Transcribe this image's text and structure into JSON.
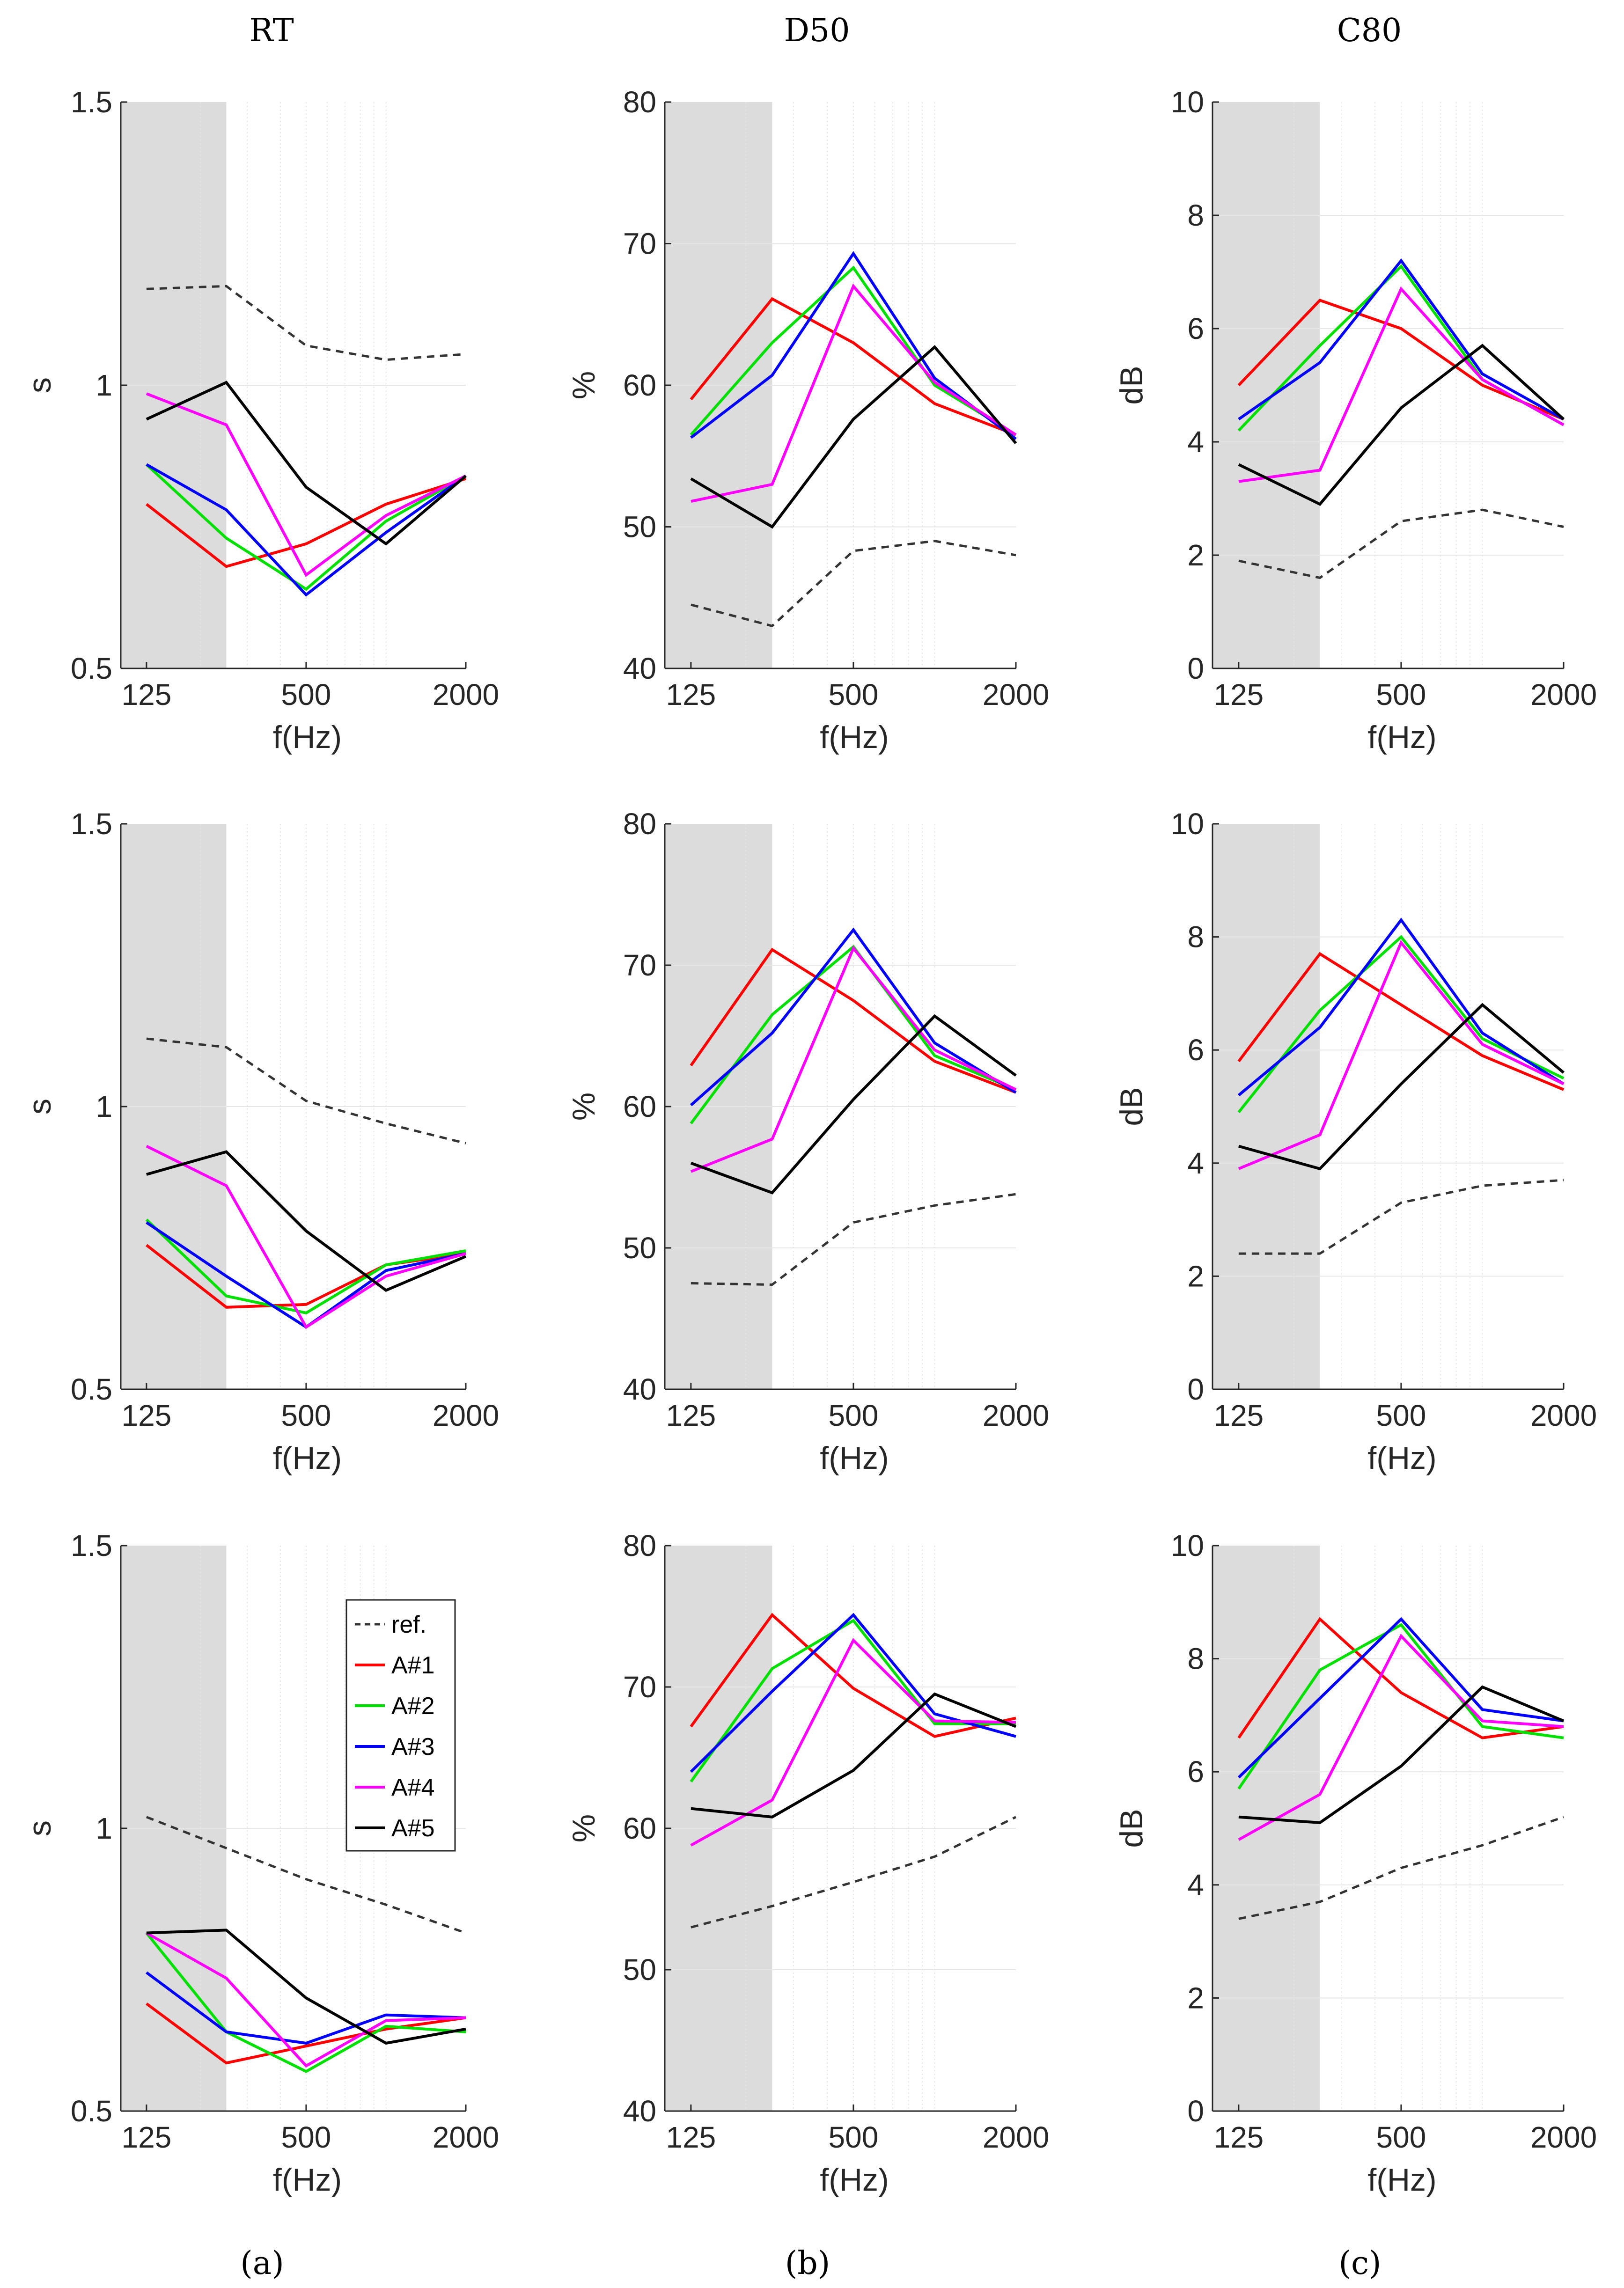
{
  "column_titles": [
    "RT",
    "D50",
    "C80"
  ],
  "panel_labels": [
    "(a)",
    "(b)",
    "(c)"
  ],
  "legend": [
    "ref.",
    "A#1",
    "A#2",
    "A#3",
    "A#4",
    "A#5"
  ],
  "colors": {
    "ref.": "#333333",
    "A#1": "#ff0000",
    "A#2": "#00e000",
    "A#3": "#0000ff",
    "A#4": "#ff00ff",
    "A#5": "#000000",
    "shade": "#dcdcdc",
    "grid": "#e6e6e6"
  },
  "chart_data": [
    {
      "type": "line",
      "row": 1,
      "col": 1,
      "xlabel": "f(Hz)",
      "ylabel": "s",
      "xscale": "log",
      "x": [
        125,
        250,
        500,
        1000,
        2000
      ],
      "xticks": [
        "125",
        "500",
        "2000"
      ],
      "ylim": [
        0.5,
        1.5
      ],
      "yticks": [
        "0.5",
        "1",
        "1.5"
      ],
      "shade_xmax": 250,
      "series": [
        {
          "name": "ref.",
          "values": [
            1.17,
            1.175,
            1.07,
            1.045,
            1.055
          ]
        },
        {
          "name": "A#1",
          "values": [
            0.79,
            0.68,
            0.72,
            0.79,
            0.835
          ]
        },
        {
          "name": "A#2",
          "values": [
            0.86,
            0.73,
            0.64,
            0.76,
            0.84
          ]
        },
        {
          "name": "A#3",
          "values": [
            0.86,
            0.78,
            0.63,
            0.74,
            0.84
          ]
        },
        {
          "name": "A#4",
          "values": [
            0.985,
            0.93,
            0.665,
            0.77,
            0.84
          ]
        },
        {
          "name": "A#5",
          "values": [
            0.94,
            1.005,
            0.82,
            0.72,
            0.84
          ]
        }
      ]
    },
    {
      "type": "line",
      "row": 1,
      "col": 2,
      "xlabel": "f(Hz)",
      "ylabel": "%",
      "xscale": "log",
      "x": [
        125,
        250,
        500,
        1000,
        2000
      ],
      "xticks": [
        "125",
        "500",
        "2000"
      ],
      "ylim": [
        40,
        80
      ],
      "yticks": [
        "40",
        "50",
        "60",
        "70",
        "80"
      ],
      "shade_xmax": 250,
      "series": [
        {
          "name": "ref.",
          "values": [
            44.5,
            43.0,
            48.3,
            49.0,
            48.0
          ]
        },
        {
          "name": "A#1",
          "values": [
            59.0,
            66.1,
            63.0,
            58.7,
            56.5
          ]
        },
        {
          "name": "A#2",
          "values": [
            56.5,
            63.0,
            68.3,
            60.0,
            56.5
          ]
        },
        {
          "name": "A#3",
          "values": [
            56.3,
            60.7,
            69.3,
            60.5,
            56.2
          ]
        },
        {
          "name": "A#4",
          "values": [
            51.8,
            53.0,
            67.0,
            60.2,
            56.5
          ]
        },
        {
          "name": "A#5",
          "values": [
            53.4,
            50.0,
            57.6,
            62.7,
            55.9
          ]
        }
      ]
    },
    {
      "type": "line",
      "row": 1,
      "col": 3,
      "xlabel": "f(Hz)",
      "ylabel": "dB",
      "xscale": "log",
      "x": [
        125,
        250,
        500,
        1000,
        2000
      ],
      "xticks": [
        "125",
        "500",
        "2000"
      ],
      "ylim": [
        0,
        10
      ],
      "yticks": [
        "0",
        "2",
        "4",
        "6",
        "8",
        "10"
      ],
      "shade_xmax": 250,
      "series": [
        {
          "name": "ref.",
          "values": [
            1.9,
            1.6,
            2.6,
            2.8,
            2.5
          ]
        },
        {
          "name": "A#1",
          "values": [
            5.0,
            6.5,
            6.0,
            5.0,
            4.4
          ]
        },
        {
          "name": "A#2",
          "values": [
            4.2,
            5.7,
            7.1,
            5.1,
            4.3
          ]
        },
        {
          "name": "A#3",
          "values": [
            4.4,
            5.4,
            7.2,
            5.2,
            4.4
          ]
        },
        {
          "name": "A#4",
          "values": [
            3.3,
            3.5,
            6.7,
            5.1,
            4.3
          ]
        },
        {
          "name": "A#5",
          "values": [
            3.6,
            2.9,
            4.6,
            5.7,
            4.4
          ]
        }
      ]
    },
    {
      "type": "line",
      "row": 2,
      "col": 1,
      "xlabel": "f(Hz)",
      "ylabel": "s",
      "xscale": "log",
      "x": [
        125,
        250,
        500,
        1000,
        2000
      ],
      "xticks": [
        "125",
        "500",
        "2000"
      ],
      "ylim": [
        0.5,
        1.5
      ],
      "yticks": [
        "0.5",
        "1",
        "1.5"
      ],
      "shade_xmax": 250,
      "series": [
        {
          "name": "ref.",
          "values": [
            1.12,
            1.105,
            1.01,
            0.97,
            0.935
          ]
        },
        {
          "name": "A#1",
          "values": [
            0.755,
            0.645,
            0.65,
            0.72,
            0.74
          ]
        },
        {
          "name": "A#2",
          "values": [
            0.8,
            0.665,
            0.635,
            0.72,
            0.745
          ]
        },
        {
          "name": "A#3",
          "values": [
            0.795,
            0.7,
            0.61,
            0.71,
            0.74
          ]
        },
        {
          "name": "A#4",
          "values": [
            0.93,
            0.86,
            0.61,
            0.7,
            0.74
          ]
        },
        {
          "name": "A#5",
          "values": [
            0.88,
            0.92,
            0.78,
            0.675,
            0.735
          ]
        }
      ]
    },
    {
      "type": "line",
      "row": 2,
      "col": 2,
      "xlabel": "f(Hz)",
      "ylabel": "%",
      "xscale": "log",
      "x": [
        125,
        250,
        500,
        1000,
        2000
      ],
      "xticks": [
        "125",
        "500",
        "2000"
      ],
      "ylim": [
        40,
        80
      ],
      "yticks": [
        "40",
        "50",
        "60",
        "70",
        "80"
      ],
      "shade_xmax": 250,
      "series": [
        {
          "name": "ref.",
          "values": [
            47.5,
            47.4,
            51.8,
            53.0,
            53.8
          ]
        },
        {
          "name": "A#1",
          "values": [
            62.9,
            71.1,
            67.5,
            63.2,
            61.0
          ]
        },
        {
          "name": "A#2",
          "values": [
            58.8,
            66.5,
            71.3,
            63.6,
            61.2
          ]
        },
        {
          "name": "A#3",
          "values": [
            60.1,
            65.2,
            72.5,
            64.5,
            61.0
          ]
        },
        {
          "name": "A#4",
          "values": [
            55.4,
            57.7,
            71.2,
            64.0,
            61.2
          ]
        },
        {
          "name": "A#5",
          "values": [
            56.0,
            53.9,
            60.5,
            66.4,
            62.2
          ]
        }
      ]
    },
    {
      "type": "line",
      "row": 2,
      "col": 3,
      "xlabel": "f(Hz)",
      "ylabel": "dB",
      "xscale": "log",
      "x": [
        125,
        250,
        500,
        1000,
        2000
      ],
      "xticks": [
        "125",
        "500",
        "2000"
      ],
      "ylim": [
        0,
        10
      ],
      "yticks": [
        "0",
        "2",
        "4",
        "6",
        "8",
        "10"
      ],
      "shade_xmax": 250,
      "series": [
        {
          "name": "ref.",
          "values": [
            2.4,
            2.4,
            3.3,
            3.6,
            3.7
          ]
        },
        {
          "name": "A#1",
          "values": [
            5.8,
            7.7,
            6.8,
            5.9,
            5.3
          ]
        },
        {
          "name": "A#2",
          "values": [
            4.9,
            6.7,
            8.0,
            6.2,
            5.5
          ]
        },
        {
          "name": "A#3",
          "values": [
            5.2,
            6.4,
            8.3,
            6.3,
            5.4
          ]
        },
        {
          "name": "A#4",
          "values": [
            3.9,
            4.5,
            7.9,
            6.1,
            5.4
          ]
        },
        {
          "name": "A#5",
          "values": [
            4.3,
            3.9,
            5.4,
            6.8,
            5.6
          ]
        }
      ]
    },
    {
      "type": "line",
      "row": 3,
      "col": 1,
      "xlabel": "f(Hz)",
      "ylabel": "s",
      "xscale": "log",
      "x": [
        125,
        250,
        500,
        1000,
        2000
      ],
      "xticks": [
        "125",
        "500",
        "2000"
      ],
      "ylim": [
        0.5,
        1.5
      ],
      "yticks": [
        "0.5",
        "1",
        "1.5"
      ],
      "shade_xmax": 250,
      "series": [
        {
          "name": "ref.",
          "values": [
            1.02,
            0.965,
            0.91,
            0.865,
            0.815
          ]
        },
        {
          "name": "A#1",
          "values": [
            0.69,
            0.585,
            0.615,
            0.645,
            0.665
          ]
        },
        {
          "name": "A#2",
          "values": [
            0.815,
            0.64,
            0.57,
            0.65,
            0.64
          ]
        },
        {
          "name": "A#3",
          "values": [
            0.745,
            0.64,
            0.62,
            0.67,
            0.665
          ]
        },
        {
          "name": "A#4",
          "values": [
            0.815,
            0.735,
            0.58,
            0.66,
            0.665
          ]
        },
        {
          "name": "A#5",
          "values": [
            0.815,
            0.82,
            0.7,
            0.62,
            0.645
          ]
        }
      ]
    },
    {
      "type": "line",
      "row": 3,
      "col": 2,
      "xlabel": "f(Hz)",
      "ylabel": "%",
      "xscale": "log",
      "x": [
        125,
        250,
        500,
        1000,
        2000
      ],
      "xticks": [
        "125",
        "500",
        "2000"
      ],
      "ylim": [
        40,
        80
      ],
      "yticks": [
        "40",
        "50",
        "60",
        "70",
        "80"
      ],
      "shade_xmax": 250,
      "series": [
        {
          "name": "ref.",
          "values": [
            53.0,
            54.5,
            56.2,
            58.0,
            60.8
          ]
        },
        {
          "name": "A#1",
          "values": [
            67.2,
            75.1,
            69.9,
            66.5,
            67.8
          ]
        },
        {
          "name": "A#2",
          "values": [
            63.3,
            71.3,
            74.7,
            67.4,
            67.4
          ]
        },
        {
          "name": "A#3",
          "values": [
            64.0,
            69.7,
            75.1,
            68.1,
            66.5
          ]
        },
        {
          "name": "A#4",
          "values": [
            58.8,
            62.0,
            73.3,
            67.6,
            67.5
          ]
        },
        {
          "name": "A#5",
          "values": [
            61.4,
            60.8,
            64.1,
            69.5,
            67.2
          ]
        }
      ]
    },
    {
      "type": "line",
      "row": 3,
      "col": 3,
      "xlabel": "f(Hz)",
      "ylabel": "dB",
      "xscale": "log",
      "x": [
        125,
        250,
        500,
        1000,
        2000
      ],
      "xticks": [
        "125",
        "500",
        "2000"
      ],
      "ylim": [
        0,
        10
      ],
      "yticks": [
        "0",
        "2",
        "4",
        "6",
        "8",
        "10"
      ],
      "shade_xmax": 250,
      "series": [
        {
          "name": "ref.",
          "values": [
            3.4,
            3.7,
            4.3,
            4.7,
            5.2
          ]
        },
        {
          "name": "A#1",
          "values": [
            6.6,
            8.7,
            7.4,
            6.6,
            6.8
          ]
        },
        {
          "name": "A#2",
          "values": [
            5.7,
            7.8,
            8.6,
            6.8,
            6.6
          ]
        },
        {
          "name": "A#3",
          "values": [
            5.9,
            7.3,
            8.7,
            7.1,
            6.9
          ]
        },
        {
          "name": "A#4",
          "values": [
            4.8,
            5.6,
            8.4,
            6.9,
            6.8
          ]
        },
        {
          "name": "A#5",
          "values": [
            5.2,
            5.1,
            6.1,
            7.5,
            6.9
          ]
        }
      ]
    }
  ]
}
